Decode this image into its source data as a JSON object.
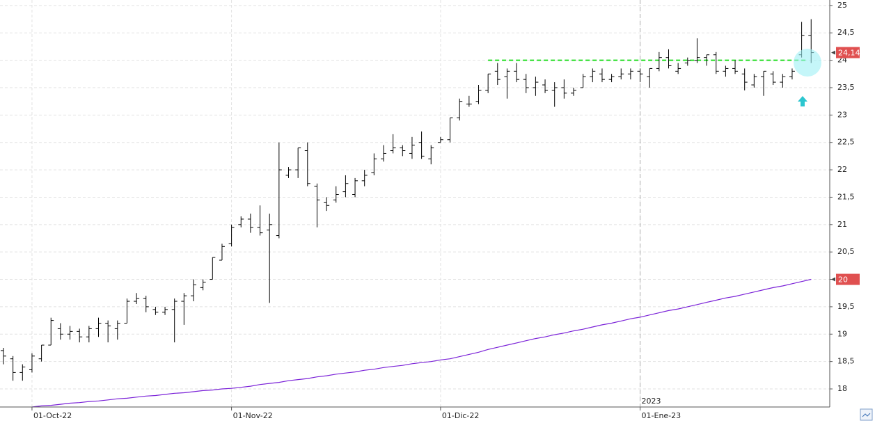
{
  "chart_data": {
    "type": "ohlc",
    "categories": [
      null,
      null,
      null,
      "01-Oct-22",
      null,
      null,
      null,
      null,
      null,
      null,
      null,
      null,
      null,
      null,
      null,
      null,
      null,
      null,
      null,
      null,
      null,
      null,
      null,
      null,
      "01-Nov-22",
      null,
      null,
      null,
      null,
      null,
      null,
      null,
      null,
      null,
      null,
      null,
      null,
      null,
      null,
      null,
      null,
      null,
      null,
      null,
      null,
      null,
      "01-Dic-22",
      null,
      null,
      null,
      null,
      null,
      null,
      null,
      null,
      null,
      null,
      null,
      null,
      null,
      null,
      null,
      null,
      null,
      null,
      null,
      null,
      "01-Ene-23",
      null,
      null,
      null,
      null,
      null,
      null,
      null,
      null,
      null,
      null,
      null,
      null,
      null,
      null,
      null,
      null,
      null,
      null
    ],
    "year_label": "2023",
    "open": [
      18.7,
      18.55,
      18.3,
      18.35,
      18.55,
      18.8,
      19.1,
      19.0,
      19.05,
      18.95,
      19.1,
      19.2,
      19.1,
      19.2,
      19.6,
      19.65,
      19.45,
      19.4,
      19.45,
      19.6,
      19.7,
      19.85,
      20.0,
      20.35,
      20.65,
      21.0,
      21.1,
      20.95,
      20.9,
      20.8,
      21.9,
      22.0,
      22.35,
      21.7,
      21.4,
      21.45,
      21.6,
      21.55,
      21.8,
      21.95,
      22.2,
      22.35,
      22.4,
      22.3,
      22.5,
      22.2,
      22.5,
      22.55,
      22.95,
      23.2,
      23.25,
      23.45,
      23.8,
      23.7,
      23.8,
      23.65,
      23.5,
      23.55,
      23.45,
      23.5,
      23.4,
      23.5,
      23.7,
      23.75,
      23.65,
      23.7,
      23.75,
      23.8,
      23.7,
      23.85,
      24.05,
      23.8,
      23.95,
      24.0,
      24.05,
      24.1,
      23.8,
      23.85,
      23.75,
      23.55,
      23.7,
      23.75,
      23.6,
      23.7,
      24.1,
      24.45
    ],
    "high": [
      18.75,
      18.6,
      18.45,
      18.65,
      18.8,
      19.3,
      19.2,
      19.15,
      19.1,
      19.15,
      19.3,
      19.25,
      19.25,
      19.65,
      19.75,
      19.7,
      19.5,
      19.5,
      19.65,
      19.75,
      20.0,
      20.0,
      20.4,
      20.65,
      21.0,
      21.15,
      21.2,
      21.35,
      21.2,
      22.5,
      22.05,
      22.4,
      22.5,
      21.75,
      21.5,
      21.7,
      21.9,
      21.85,
      22.0,
      22.3,
      22.45,
      22.65,
      22.45,
      22.6,
      22.7,
      22.45,
      22.6,
      22.95,
      23.3,
      23.35,
      23.55,
      23.75,
      23.95,
      23.85,
      23.95,
      23.75,
      23.7,
      23.65,
      23.6,
      23.65,
      23.5,
      23.75,
      23.85,
      23.85,
      23.75,
      23.85,
      23.85,
      23.85,
      23.85,
      24.15,
      24.2,
      23.95,
      24.05,
      24.4,
      24.1,
      24.15,
      23.9,
      24.0,
      23.85,
      23.75,
      23.8,
      23.8,
      23.75,
      23.85,
      24.7,
      24.75
    ],
    "low": [
      18.45,
      18.15,
      18.15,
      18.3,
      18.5,
      18.8,
      18.9,
      18.9,
      18.85,
      18.85,
      18.95,
      18.85,
      18.9,
      19.2,
      19.55,
      19.4,
      19.35,
      19.35,
      18.85,
      19.17,
      19.6,
      19.8,
      20.0,
      20.35,
      20.6,
      20.95,
      20.85,
      20.8,
      19.57,
      20.75,
      21.85,
      21.85,
      21.7,
      20.95,
      21.25,
      21.4,
      21.5,
      21.5,
      21.7,
      21.9,
      22.15,
      22.3,
      22.25,
      22.2,
      22.2,
      22.1,
      22.5,
      22.5,
      22.9,
      23.15,
      23.2,
      23.4,
      23.55,
      23.3,
      23.6,
      23.4,
      23.35,
      23.4,
      23.15,
      23.3,
      23.35,
      23.5,
      23.6,
      23.6,
      23.6,
      23.65,
      23.65,
      23.6,
      23.5,
      23.8,
      23.85,
      23.75,
      23.9,
      23.95,
      23.9,
      23.75,
      23.7,
      23.75,
      23.45,
      23.5,
      23.35,
      23.55,
      23.5,
      23.65,
      24.05,
      23.95
    ],
    "close": [
      18.6,
      18.3,
      18.4,
      18.6,
      18.8,
      19.25,
      19.0,
      19.05,
      18.95,
      19.1,
      19.2,
      19.15,
      19.2,
      19.6,
      19.65,
      19.5,
      19.4,
      19.45,
      19.6,
      19.7,
      19.9,
      19.95,
      20.4,
      20.6,
      20.95,
      21.1,
      20.95,
      20.85,
      21.0,
      22.0,
      22.0,
      22.4,
      21.75,
      21.45,
      21.35,
      21.55,
      21.75,
      21.8,
      21.9,
      22.2,
      22.3,
      22.4,
      22.35,
      22.45,
      22.25,
      22.4,
      22.55,
      22.95,
      23.25,
      23.2,
      23.45,
      23.75,
      23.65,
      23.8,
      23.65,
      23.5,
      23.6,
      23.45,
      23.5,
      23.4,
      23.45,
      23.7,
      23.8,
      23.65,
      23.7,
      23.75,
      23.8,
      23.75,
      23.85,
      24.05,
      23.9,
      23.85,
      24.0,
      24.05,
      24.1,
      23.8,
      23.85,
      23.8,
      23.6,
      23.7,
      23.8,
      23.6,
      23.7,
      23.8,
      24.45,
      24.14
    ],
    "bar_color": "#000000",
    "moving_average": {
      "color": "#7b22d8",
      "values": [
        null,
        null,
        null,
        17.67,
        17.69,
        17.7,
        17.72,
        17.74,
        17.75,
        17.77,
        17.78,
        17.8,
        17.82,
        17.83,
        17.85,
        17.87,
        17.88,
        17.9,
        17.92,
        17.93,
        17.95,
        17.97,
        17.98,
        18.0,
        18.01,
        18.03,
        18.05,
        18.08,
        18.1,
        18.12,
        18.15,
        18.17,
        18.19,
        18.22,
        18.24,
        18.27,
        18.29,
        18.31,
        18.34,
        18.36,
        18.39,
        18.41,
        18.43,
        18.46,
        18.48,
        18.5,
        18.53,
        18.55,
        18.59,
        18.63,
        18.67,
        18.72,
        18.76,
        18.8,
        18.84,
        18.88,
        18.92,
        18.95,
        18.99,
        19.02,
        19.06,
        19.09,
        19.13,
        19.17,
        19.2,
        19.24,
        19.28,
        19.31,
        19.35,
        19.39,
        19.43,
        19.46,
        19.5,
        19.54,
        19.58,
        19.62,
        19.66,
        19.69,
        19.73,
        19.77,
        19.81,
        19.85,
        19.88,
        19.92,
        19.96,
        20.0
      ]
    },
    "resistance": {
      "value": 24,
      "color": "#22dd22"
    },
    "price_tags": [
      {
        "value": 24.14,
        "label": "24,14"
      },
      {
        "value": 20,
        "label": "20"
      }
    ],
    "ylim": [
      17.67,
      25.1
    ],
    "yticks": [
      18,
      {
        "value": 18.5,
        "label": "18,5"
      },
      19,
      {
        "value": 19.5,
        "label": "19,5"
      },
      20,
      {
        "value": 20.5,
        "label": "20,5"
      },
      21,
      {
        "value": 21.5,
        "label": "21,5"
      },
      22,
      {
        "value": 22.5,
        "label": "22,5"
      },
      23,
      {
        "value": 23.5,
        "label": "23,5"
      },
      24,
      {
        "value": 24.5,
        "label": "24,5"
      },
      25
    ],
    "grid": true
  }
}
